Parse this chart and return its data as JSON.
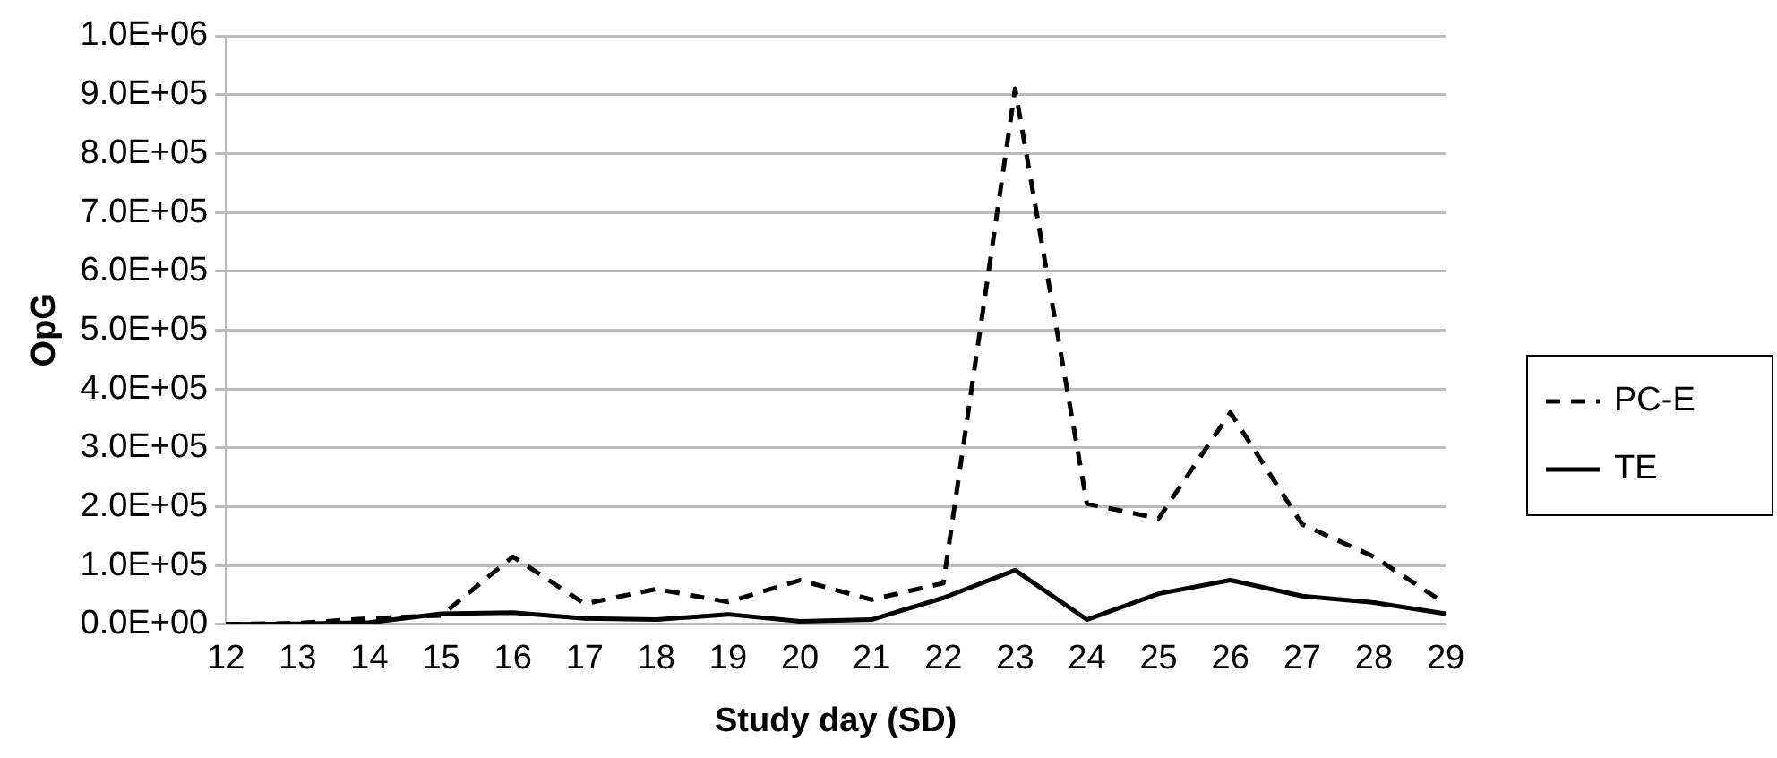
{
  "chart_data": {
    "type": "line",
    "xlabel": "Study day (SD)",
    "ylabel": "OpG",
    "categories": [
      "12",
      "13",
      "14",
      "15",
      "16",
      "17",
      "18",
      "19",
      "20",
      "21",
      "22",
      "23",
      "24",
      "25",
      "26",
      "27",
      "28",
      "29"
    ],
    "series": [
      {
        "name": "PC-E",
        "color": "#000000",
        "line_style": "dashed",
        "values": [
          0,
          2000,
          10000,
          15000,
          115000,
          35000,
          60000,
          38000,
          75000,
          42000,
          70000,
          910000,
          205000,
          180000,
          360000,
          170000,
          115000,
          35000
        ]
      },
      {
        "name": "TE",
        "color": "#000000",
        "line_style": "solid",
        "values": [
          0,
          1000,
          3000,
          18000,
          20000,
          10000,
          8000,
          17000,
          5000,
          8000,
          45000,
          92000,
          8000,
          52000,
          75000,
          48000,
          37000,
          18000
        ]
      }
    ],
    "ylim": [
      0,
      1000000
    ],
    "yticks": [
      {
        "value": 0,
        "label": "0.0E+00"
      },
      {
        "value": 100000,
        "label": "1.0E+05"
      },
      {
        "value": 200000,
        "label": "2.0E+05"
      },
      {
        "value": 300000,
        "label": "3.0E+05"
      },
      {
        "value": 400000,
        "label": "4.0E+05"
      },
      {
        "value": 500000,
        "label": "5.0E+05"
      },
      {
        "value": 600000,
        "label": "6.0E+05"
      },
      {
        "value": 700000,
        "label": "7.0E+05"
      },
      {
        "value": 800000,
        "label": "8.0E+05"
      },
      {
        "value": 900000,
        "label": "9.0E+05"
      },
      {
        "value": 1000000,
        "label": "1.0E+06"
      }
    ],
    "grid": "y",
    "legend": "right",
    "marker": "none"
  }
}
